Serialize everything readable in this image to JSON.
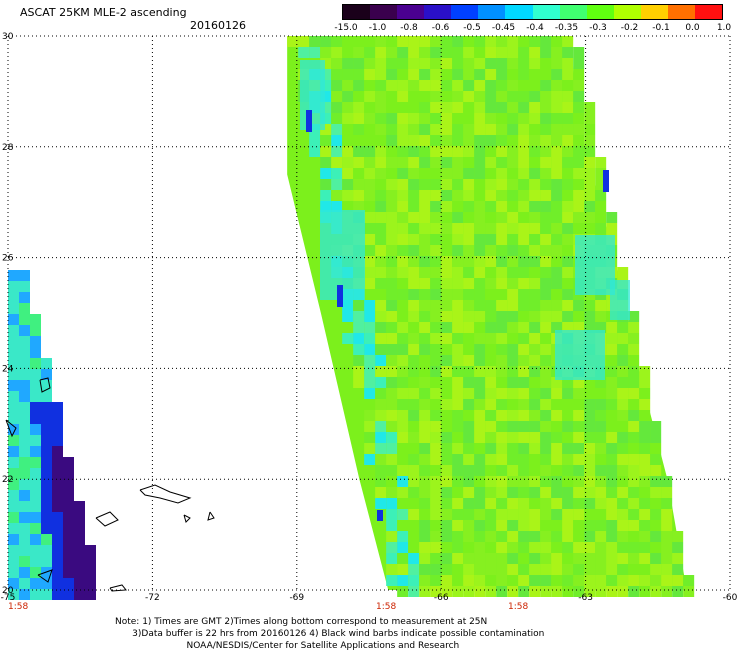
{
  "header": {
    "title": "ASCAT 25KM MLE-2 ascending",
    "date": "20160126"
  },
  "colorbar": {
    "labels": [
      "-15.0",
      "-1.0",
      "-0.8",
      "-0.6",
      "-0.5",
      "-0.45",
      "-0.4",
      "-0.35",
      "-0.3",
      "-0.2",
      "-0.1",
      "0.0",
      "1.0"
    ],
    "colors": [
      "#1a001a",
      "#3a004d",
      "#4a0090",
      "#2a10c8",
      "#0040ff",
      "#0090ff",
      "#00d8ff",
      "#30ffd0",
      "#40ff70",
      "#60ff10",
      "#b0ff00",
      "#ffd000",
      "#ff7000",
      "#ff1010"
    ]
  },
  "axes": {
    "x_ticks": [
      "-75",
      "-72",
      "-69",
      "-66",
      "-63",
      "-60"
    ],
    "y_ticks": [
      "30",
      "28",
      "26",
      "24",
      "22",
      "20"
    ],
    "time_labels": [
      "1:58",
      "1:58",
      "1:58"
    ]
  },
  "notes": {
    "line1": "Note: 1) Times are GMT 2)Times along bottom correspond to measurement at 25N",
    "line2": "      3)Data buffer is 22 hrs from 20160126 4) Black wind barbs indicate possible contamination",
    "line3": "                         NOAA/NESDIS/Center for Satellite Applications and Research"
  },
  "colors": {
    "swath_green": "#7cf01c",
    "swath_lime": "#a6f41a",
    "swath_cyan": "#20e6f0",
    "purple": "#3a0a80",
    "blue": "#1030e0"
  }
}
